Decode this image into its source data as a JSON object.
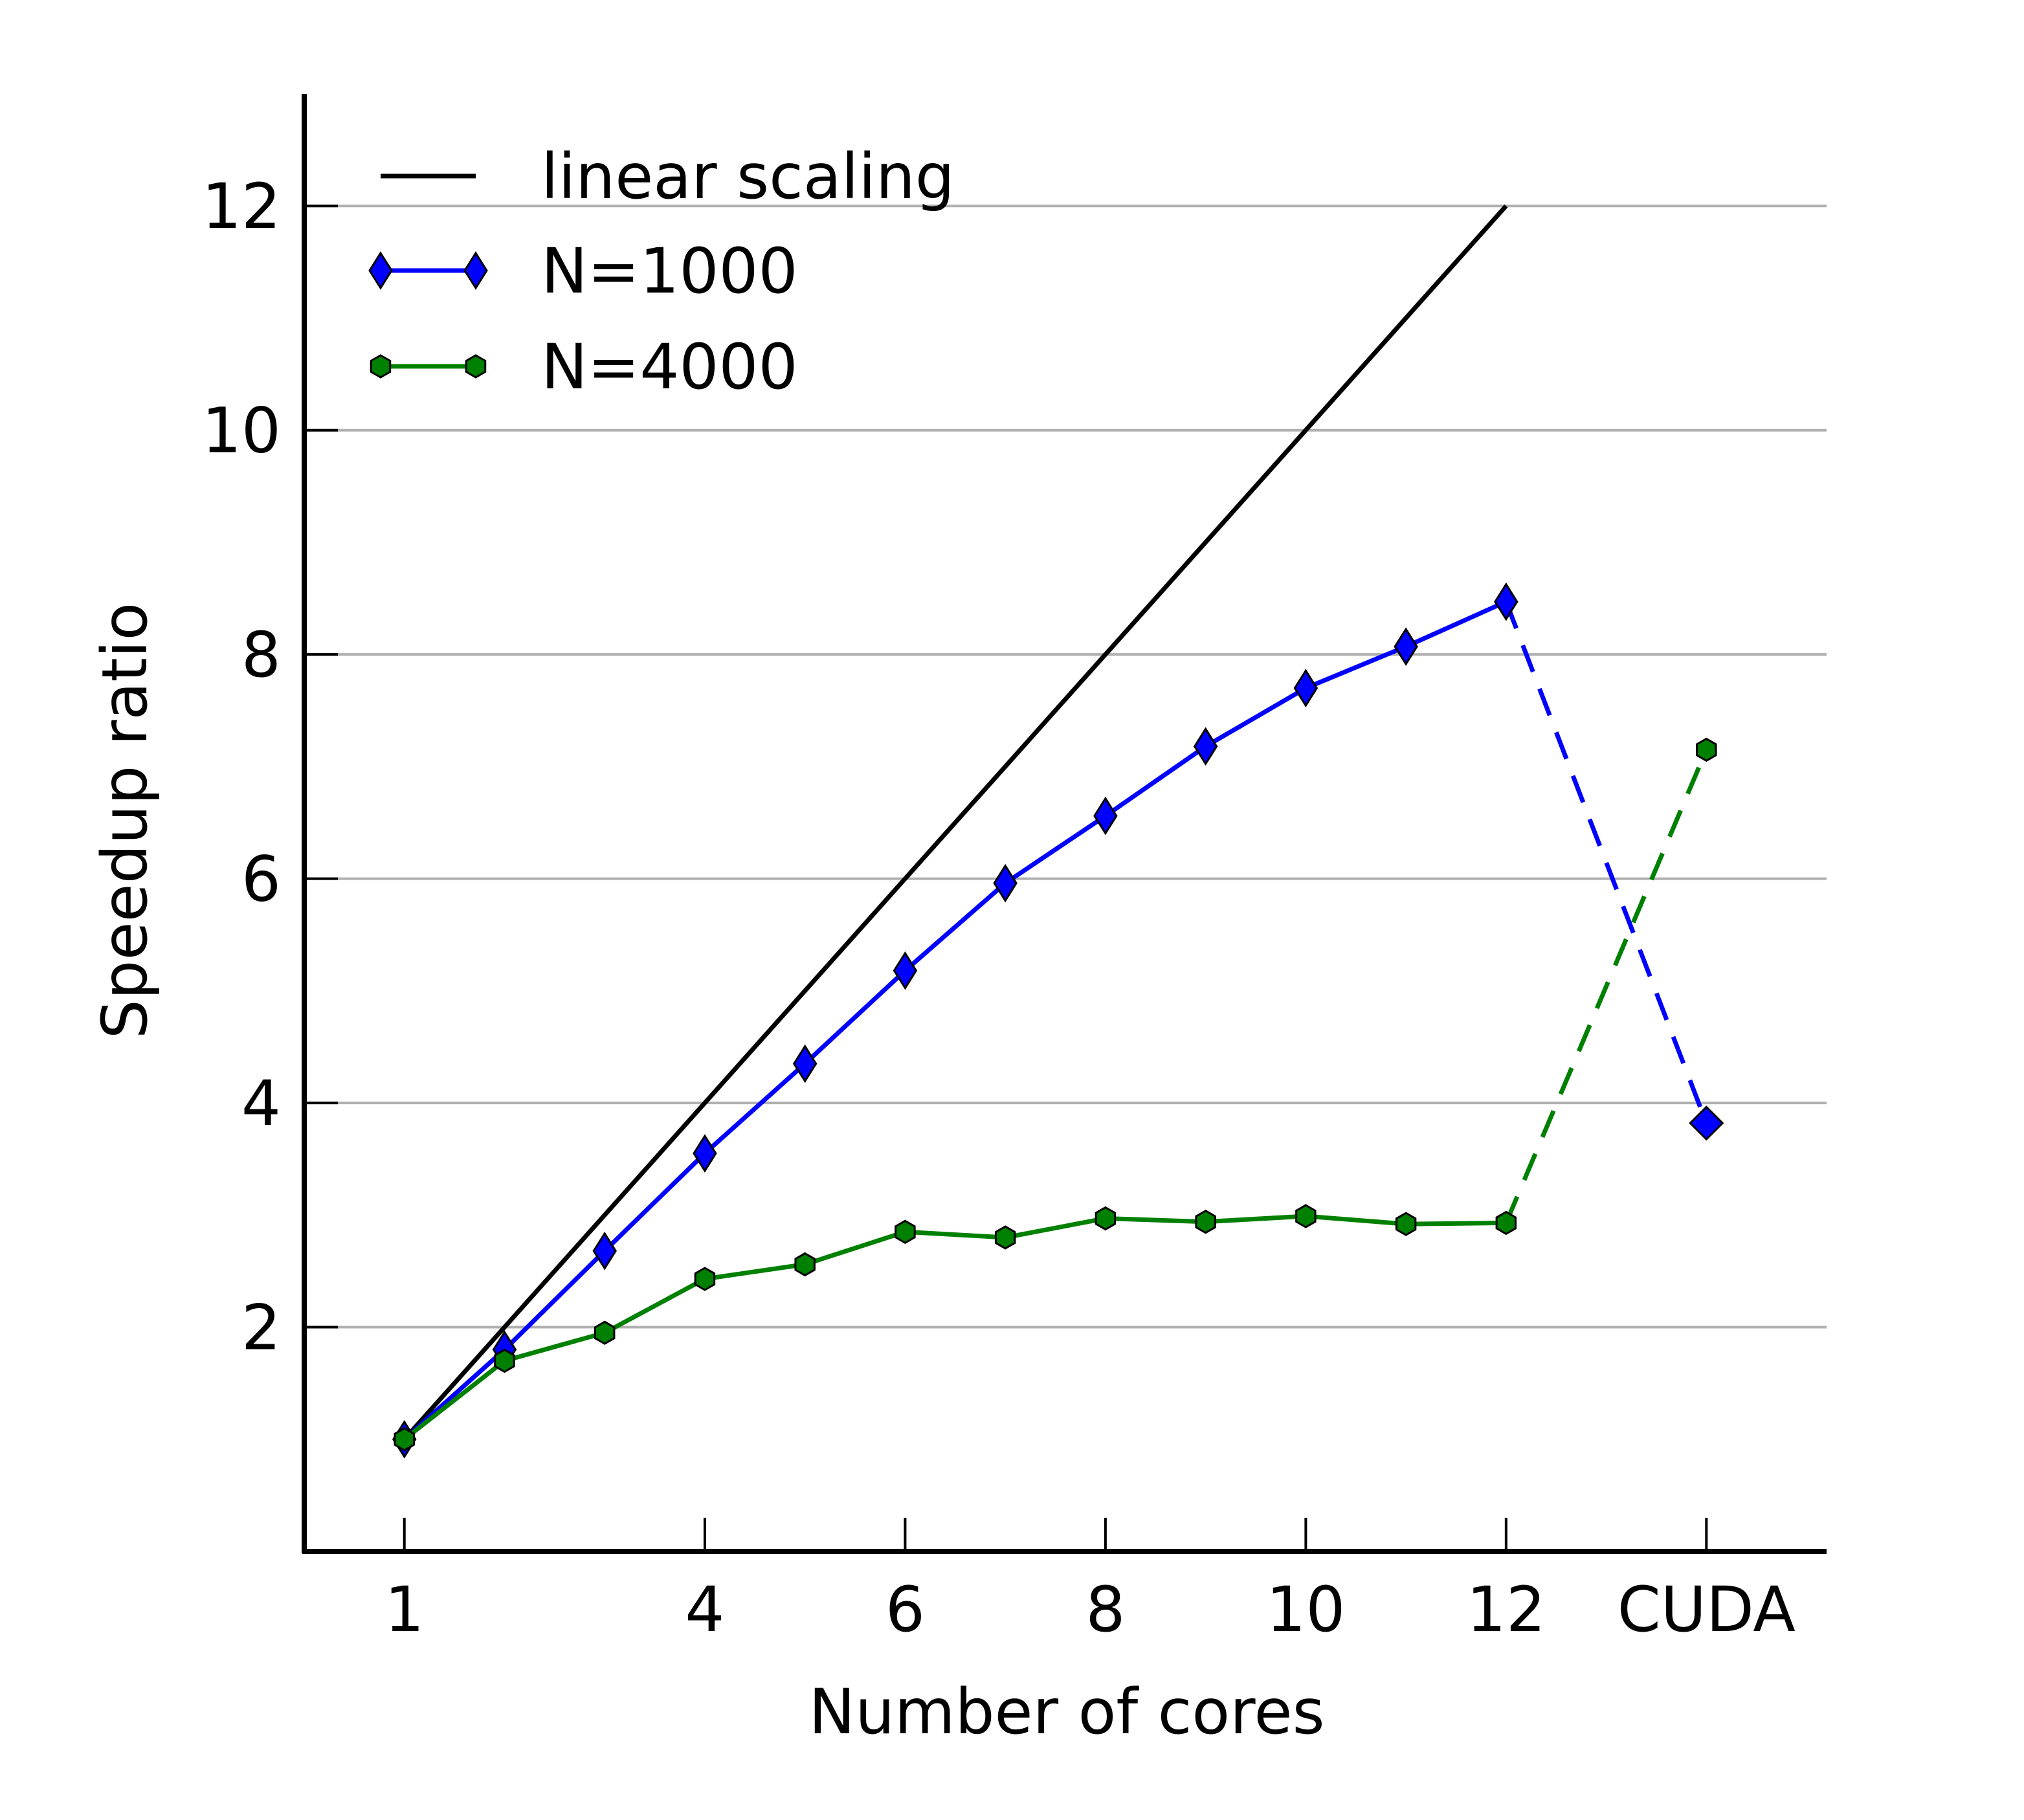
{
  "chart_data": {
    "type": "line",
    "xlabel": "Number of cores",
    "ylabel": "Speedup ratio",
    "x_ticks": [
      {
        "value": 1,
        "label": "1"
      },
      {
        "value": 4,
        "label": "4"
      },
      {
        "value": 6,
        "label": "6"
      },
      {
        "value": 8,
        "label": "8"
      },
      {
        "value": 10,
        "label": "10"
      },
      {
        "value": 12,
        "label": "12"
      },
      {
        "value": 14,
        "label": "CUDA"
      }
    ],
    "y_ticks": [
      {
        "value": 2,
        "label": "2"
      },
      {
        "value": 4,
        "label": "4"
      },
      {
        "value": 6,
        "label": "6"
      },
      {
        "value": 8,
        "label": "8"
      },
      {
        "value": 10,
        "label": "10"
      },
      {
        "value": 12,
        "label": "12"
      }
    ],
    "xlim": [
      0,
      15.2
    ],
    "ylim": [
      0,
      13
    ],
    "grid": "horizontal",
    "legend": "top-left",
    "series": [
      {
        "name": "linear scaling",
        "color": "#000000",
        "marker": "none",
        "x": [
          1,
          12
        ],
        "y": [
          1,
          12
        ]
      },
      {
        "name": "N=1000",
        "color": "#0000ff",
        "marker": "thin-diamond",
        "x": [
          1,
          2,
          3,
          4,
          5,
          6,
          7,
          8,
          9,
          10,
          11,
          12
        ],
        "y": [
          1.0,
          1.8,
          2.68,
          3.55,
          4.35,
          5.18,
          5.96,
          6.56,
          7.18,
          7.7,
          8.07,
          8.47
        ],
        "cuda_x": 14,
        "cuda_y": 3.82
      },
      {
        "name": "N=4000",
        "color": "#008000",
        "marker": "hexagon",
        "x": [
          1,
          2,
          3,
          4,
          5,
          6,
          7,
          8,
          9,
          10,
          11,
          12
        ],
        "y": [
          1.0,
          1.7,
          1.95,
          2.43,
          2.56,
          2.85,
          2.8,
          2.97,
          2.94,
          2.99,
          2.92,
          2.93
        ],
        "cuda_x": 14,
        "cuda_y": 7.15
      }
    ]
  }
}
